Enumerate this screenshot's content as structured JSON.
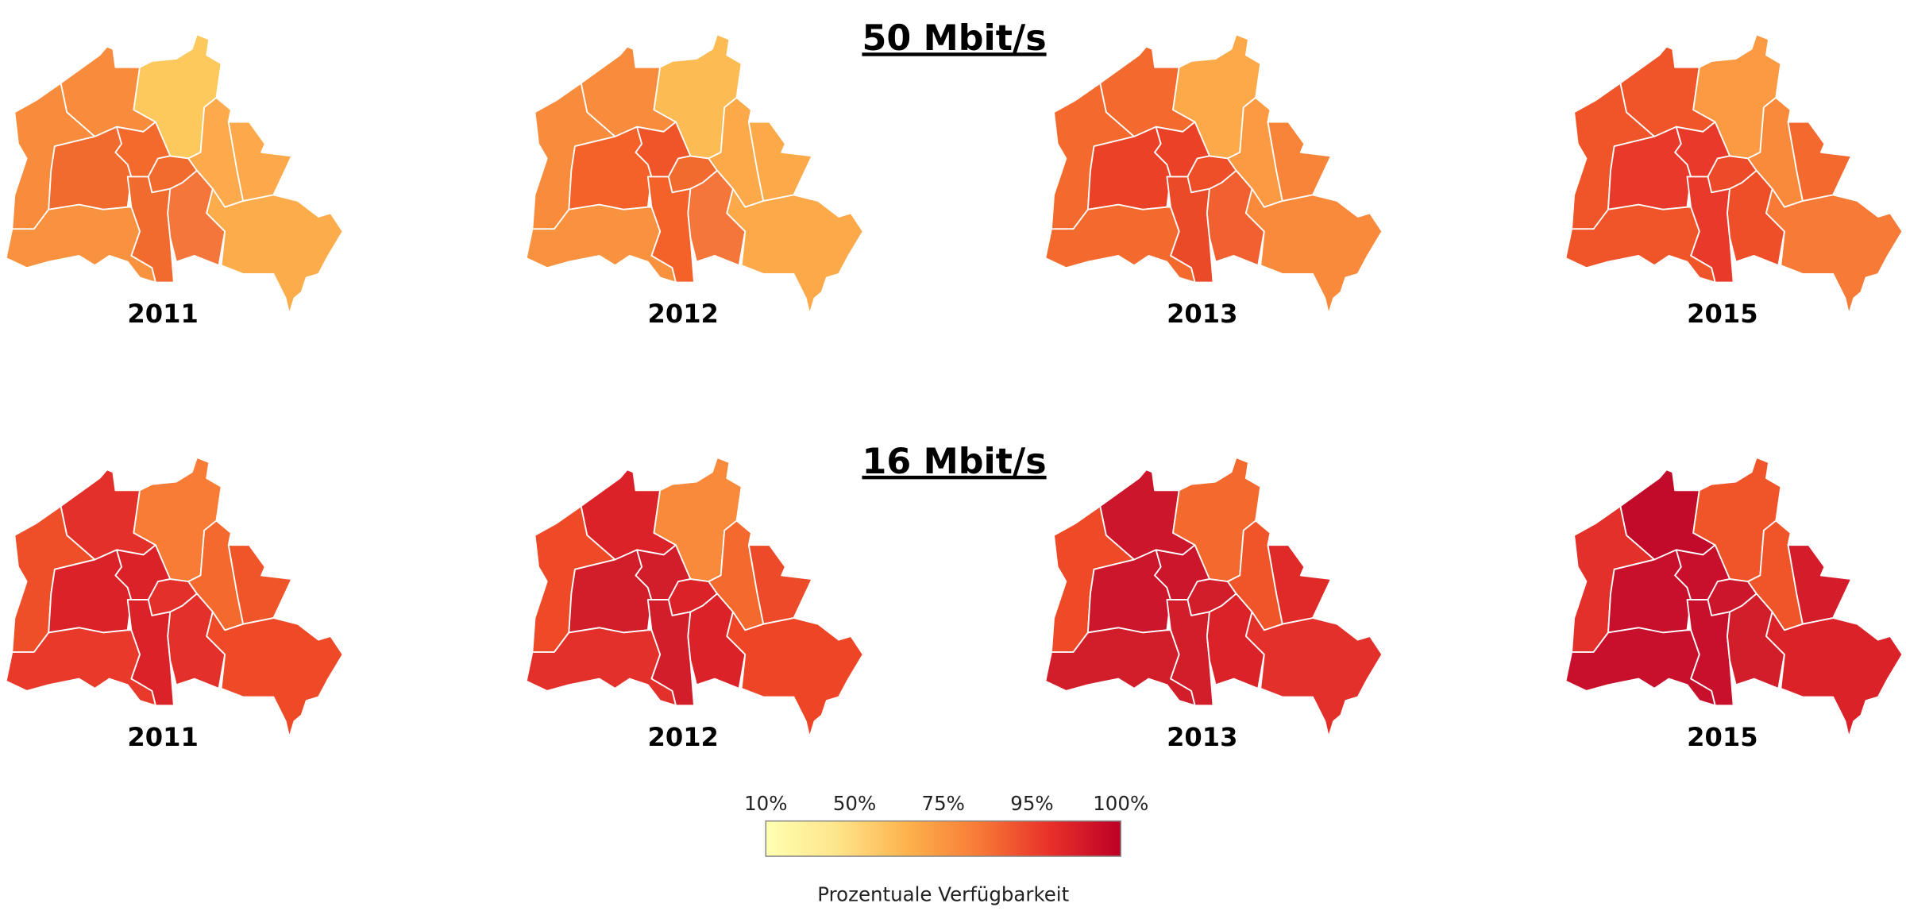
{
  "panels": [
    {
      "title": "50 Mbit/s",
      "maps": [
        {
          "year": "2011",
          "colors": [
            "#f98c3c",
            "#fdc85c",
            "#f98c3c",
            "#f26b2e",
            "#f4692c",
            "#f26b2e",
            "#fcaa4c",
            "#fda94b",
            "#f26b2e",
            "#f5763a",
            "#fdac4b",
            "#f9923e"
          ]
        },
        {
          "year": "2012",
          "colors": [
            "#f98c3c",
            "#fdbb54",
            "#f98c3c",
            "#f4622a",
            "#f0552a",
            "#f26b2e",
            "#fca94a",
            "#fca94a",
            "#f4622a",
            "#f5763a",
            "#fca94a",
            "#f9923e"
          ]
        },
        {
          "year": "2013",
          "colors": [
            "#f46a2e",
            "#fca94a",
            "#f46a2e",
            "#eb4127",
            "#eb4127",
            "#ee4f29",
            "#fb9a42",
            "#f8843a",
            "#eb4a28",
            "#f06030",
            "#f98a3c",
            "#f46a2e"
          ]
        },
        {
          "year": "2015",
          "colors": [
            "#f0552a",
            "#fb9a42",
            "#f0552a",
            "#e8392a",
            "#e8392a",
            "#ec4a28",
            "#f98a3c",
            "#f46a2e",
            "#e8392a",
            "#ee4f29",
            "#f77a36",
            "#f0552a"
          ]
        }
      ]
    },
    {
      "title": "16 Mbit/s",
      "maps": [
        {
          "year": "2011",
          "colors": [
            "#e4302b",
            "#f97c36",
            "#ee4f29",
            "#dc2229",
            "#dc2229",
            "#e4302b",
            "#f46a2e",
            "#f0552a",
            "#dc2229",
            "#e4302b",
            "#ee4a28",
            "#e8392a"
          ]
        },
        {
          "year": "2012",
          "colors": [
            "#dc2229",
            "#f98a3c",
            "#ee4a28",
            "#d21e2b",
            "#d21e2b",
            "#dc2229",
            "#f46a2e",
            "#ec4a28",
            "#d21e2b",
            "#dc2229",
            "#ee4527",
            "#e4302b"
          ]
        },
        {
          "year": "2013",
          "colors": [
            "#cc162b",
            "#f46a2e",
            "#ee4a28",
            "#cc162b",
            "#cc162b",
            "#d21e2b",
            "#f0552a",
            "#e02a28",
            "#d21e2b",
            "#dc2229",
            "#e4302b",
            "#d21e2b"
          ]
        },
        {
          "year": "2015",
          "colors": [
            "#c20a2a",
            "#f0552a",
            "#e4302b",
            "#c8102c",
            "#c8102c",
            "#cc162b",
            "#f0552a",
            "#d41c2b",
            "#c8102c",
            "#d21e2b",
            "#dc2229",
            "#c8102c"
          ]
        }
      ]
    }
  ],
  "legend": {
    "ticks": [
      "10%",
      "50%",
      "75%",
      "95%",
      "100%"
    ],
    "colors": [
      "#ffffb2",
      "#fee58a",
      "#fdb24c",
      "#f77a36",
      "#e8302a",
      "#bd0026"
    ],
    "title": "Prozentuale Verfügbarkeit"
  }
}
